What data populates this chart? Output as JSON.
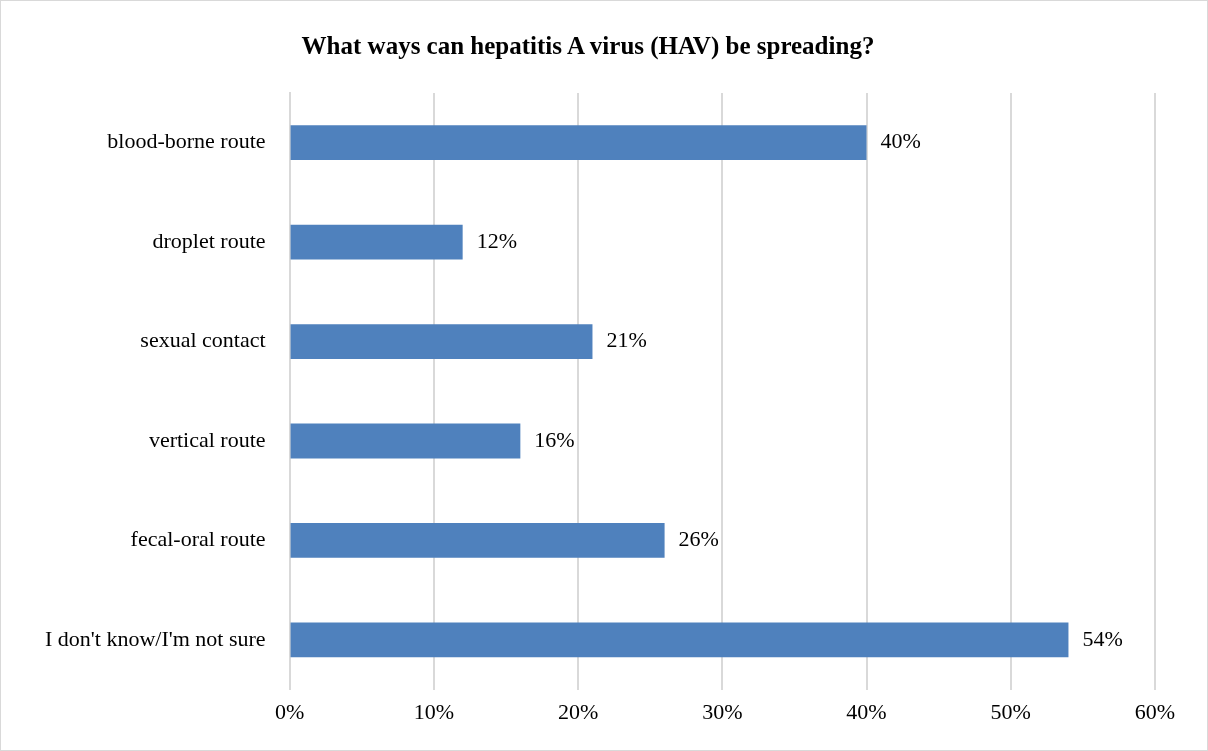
{
  "chart_data": {
    "type": "bar",
    "orientation": "horizontal",
    "title": "What ways can hepatitis A virus (HAV) be spreading?",
    "categories": [
      "blood-borne route",
      "droplet route",
      "sexual contact",
      "vertical route",
      "fecal-oral route",
      "I don't know/I'm not sure"
    ],
    "values": [
      40,
      12,
      21,
      16,
      26,
      54
    ],
    "value_labels": [
      "40%",
      "12%",
      "21%",
      "16%",
      "26%",
      "54%"
    ],
    "color": "#4f81bd",
    "xlim": [
      0,
      60
    ],
    "xticks": [
      {
        "value": 0,
        "label": "0%"
      },
      {
        "value": 10,
        "label": "10%"
      },
      {
        "value": 20,
        "label": "20%"
      },
      {
        "value": 30,
        "label": "30%"
      },
      {
        "value": 40,
        "label": "40%"
      },
      {
        "value": 50,
        "label": "50%"
      },
      {
        "value": 60,
        "label": "60%"
      }
    ],
    "grid": "x",
    "legend": false
  }
}
